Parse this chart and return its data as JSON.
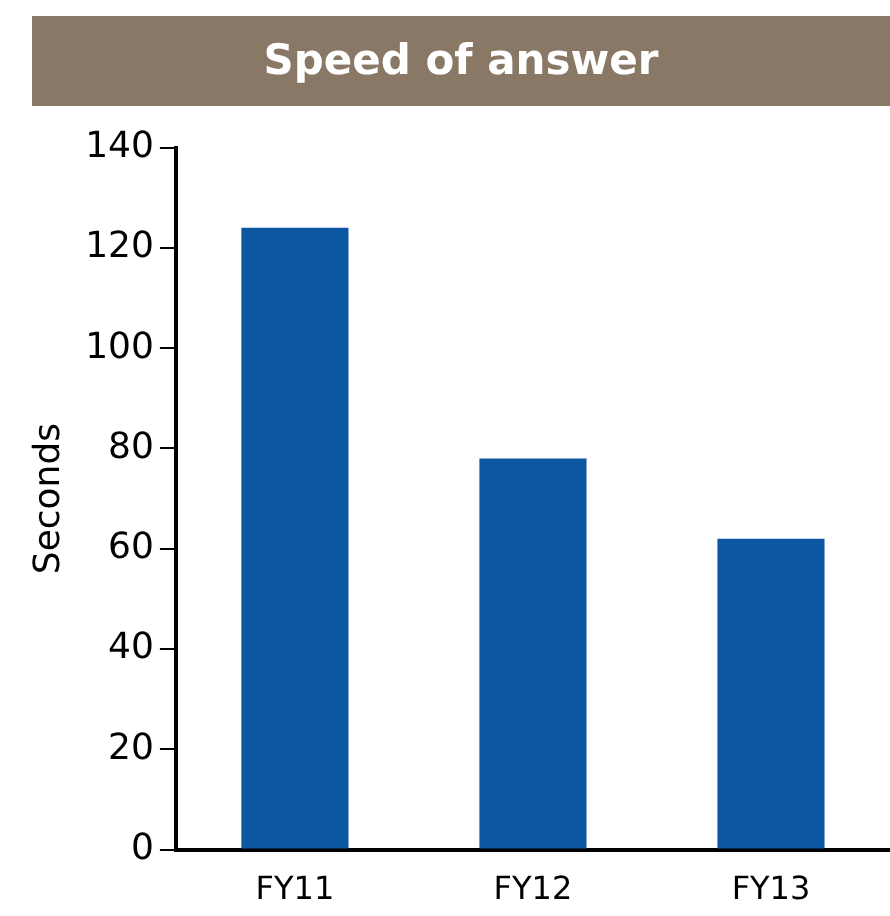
{
  "chart_data": {
    "type": "bar",
    "title": "Speed of answer",
    "ylabel": "Seconds",
    "categories": [
      "FY11",
      "FY12",
      "FY13"
    ],
    "values": [
      124,
      78,
      62
    ],
    "color": "#0c56a2",
    "ylim": [
      0,
      140
    ],
    "yticks": [
      0,
      20,
      40,
      60,
      80,
      100,
      120,
      140
    ],
    "grid": false,
    "legend": false
  }
}
